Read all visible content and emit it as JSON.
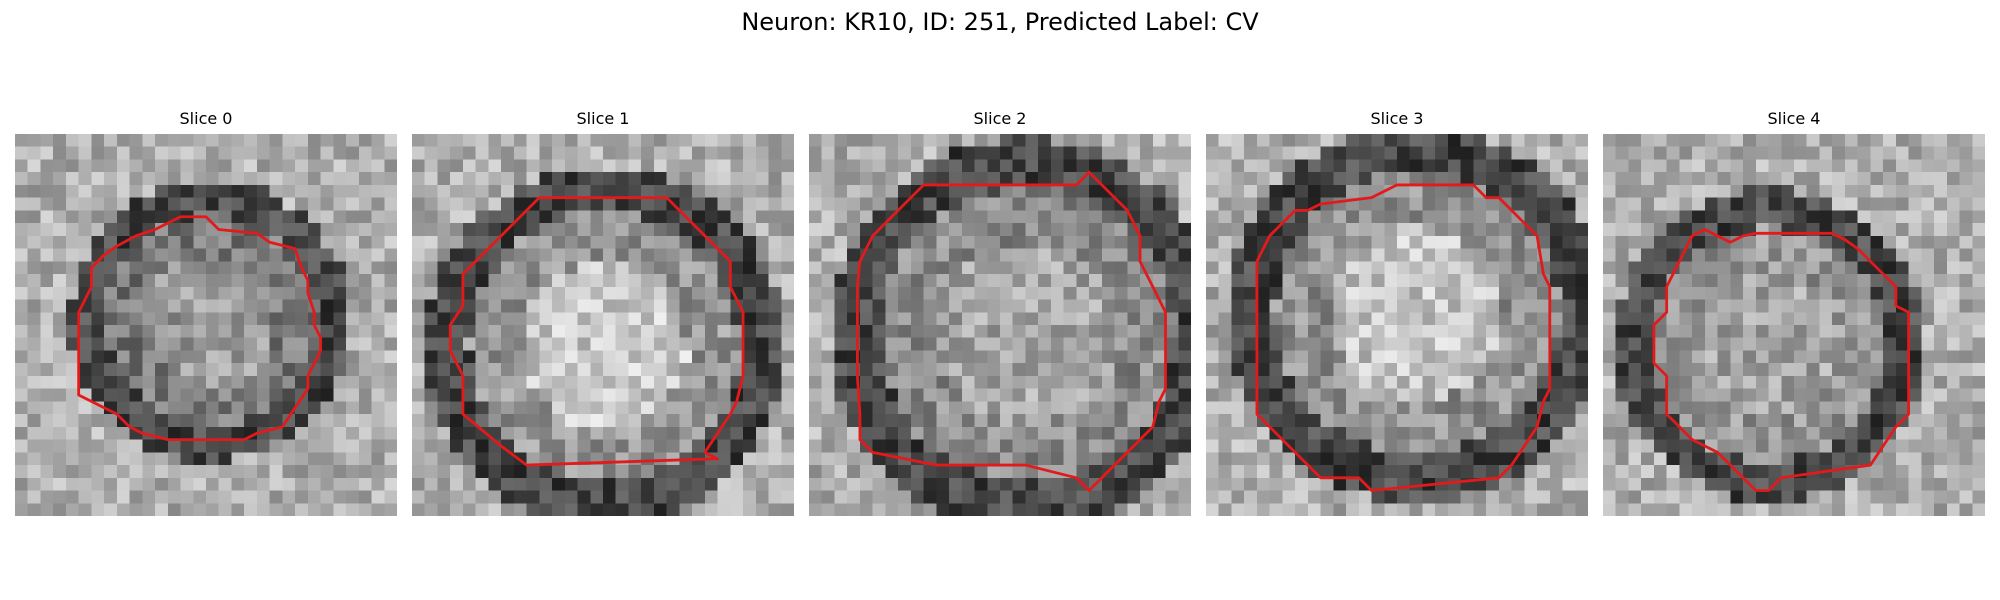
{
  "figure": {
    "title": "Neuron: KR10, ID: 251, Predicted Label: CV",
    "contour_color": "#e31a1c"
  },
  "panels": [
    {
      "title": "Slice 0",
      "seed": 11,
      "interior_tone": 120,
      "center_tone": 155
    },
    {
      "title": "Slice 1",
      "seed": 23,
      "interior_tone": 150,
      "center_tone": 200
    },
    {
      "title": "Slice 2",
      "seed": 37,
      "interior_tone": 140,
      "center_tone": 165
    },
    {
      "title": "Slice 3",
      "seed": 41,
      "interior_tone": 145,
      "center_tone": 195
    },
    {
      "title": "Slice 4",
      "seed": 53,
      "interior_tone": 150,
      "center_tone": 165
    }
  ]
}
